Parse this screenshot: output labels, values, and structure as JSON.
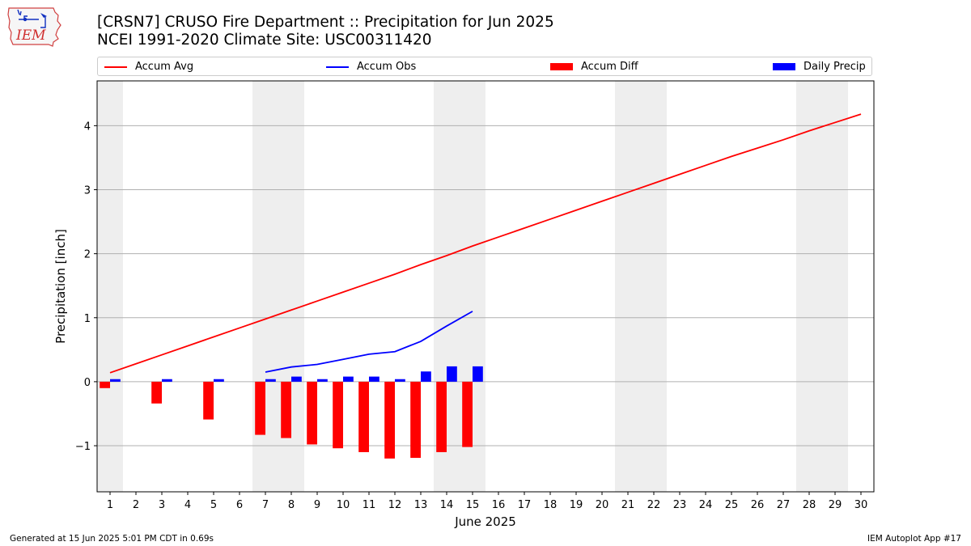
{
  "header": {
    "title_line1": "[CRSN7] CRUSO Fire Department :: Precipitation for Jun 2025",
    "title_line2": "NCEI 1991-2020 Climate Site: USC00311420"
  },
  "logo": {
    "text": "IEM",
    "icon": "iowa-state-outline-icon"
  },
  "footer": {
    "left": "Generated at 15 Jun 2025 5:01 PM CDT in 0.69s",
    "right": "IEM Autoplot App #17"
  },
  "legend": [
    {
      "label": "Accum Avg",
      "kind": "line",
      "color": "#ff0000"
    },
    {
      "label": "Accum Obs",
      "kind": "line",
      "color": "#0000ff"
    },
    {
      "label": "Accum Diff",
      "kind": "bar",
      "color": "#ff0000"
    },
    {
      "label": "Daily Precip",
      "kind": "bar",
      "color": "#0000ff"
    }
  ],
  "chart_data": {
    "type": "bar",
    "title": "[CRSN7] CRUSO Fire Department :: Precipitation for Jun 2025",
    "subtitle": "NCEI 1991-2020 Climate Site: USC00311420",
    "xlabel": "June 2025",
    "ylabel": "Precipitation [inch]",
    "x": [
      1,
      2,
      3,
      4,
      5,
      6,
      7,
      8,
      9,
      10,
      11,
      12,
      13,
      14,
      15,
      16,
      17,
      18,
      19,
      20,
      21,
      22,
      23,
      24,
      25,
      26,
      27,
      28,
      29,
      30
    ],
    "xlim": [
      0.5,
      30.5
    ],
    "ylim": [
      -1.72,
      4.7
    ],
    "yticks": [
      -1,
      0,
      1,
      2,
      3,
      4
    ],
    "ytick_labels": [
      "−1",
      "0",
      "1",
      "2",
      "3",
      "4"
    ],
    "grid": "y",
    "weekend_shading": [
      [
        0.5,
        1.5
      ],
      [
        6.5,
        8.5
      ],
      [
        13.5,
        15.5
      ],
      [
        20.5,
        22.5
      ],
      [
        27.5,
        29.5
      ]
    ],
    "series": [
      {
        "name": "Accum Avg",
        "type": "line",
        "color": "#ff0000",
        "x": [
          1,
          2,
          3,
          4,
          5,
          6,
          7,
          8,
          9,
          10,
          11,
          12,
          13,
          14,
          15,
          16,
          17,
          18,
          19,
          20,
          21,
          22,
          23,
          24,
          25,
          26,
          27,
          28,
          29,
          30
        ],
        "values": [
          0.14,
          0.28,
          0.42,
          0.56,
          0.7,
          0.84,
          0.98,
          1.12,
          1.26,
          1.4,
          1.54,
          1.68,
          1.83,
          1.97,
          2.12,
          2.26,
          2.4,
          2.54,
          2.68,
          2.82,
          2.96,
          3.1,
          3.24,
          3.38,
          3.52,
          3.65,
          3.78,
          3.92,
          4.05,
          4.18
        ]
      },
      {
        "name": "Accum Obs",
        "type": "line",
        "color": "#0000ff",
        "x": [
          7,
          8,
          9,
          10,
          11,
          12,
          13,
          14,
          15
        ],
        "values": [
          0.15,
          0.23,
          0.27,
          0.35,
          0.43,
          0.47,
          0.63,
          0.87,
          1.1
        ]
      },
      {
        "name": "Accum Diff",
        "type": "bar",
        "color": "#ff0000",
        "x": [
          1,
          3,
          5,
          7,
          8,
          9,
          10,
          11,
          12,
          13,
          14,
          15
        ],
        "values": [
          -0.1,
          -0.34,
          -0.59,
          -0.83,
          -0.88,
          -0.98,
          -1.04,
          -1.1,
          -1.2,
          -1.19,
          -1.1,
          -1.02
        ]
      },
      {
        "name": "Daily Precip",
        "type": "bar",
        "color": "#0000ff",
        "x": [
          1,
          3,
          5,
          7,
          8,
          9,
          10,
          11,
          12,
          13,
          14,
          15
        ],
        "values": [
          0.04,
          0.04,
          0.04,
          0.04,
          0.08,
          0.04,
          0.08,
          0.08,
          0.04,
          0.16,
          0.24,
          0.24
        ]
      }
    ]
  }
}
